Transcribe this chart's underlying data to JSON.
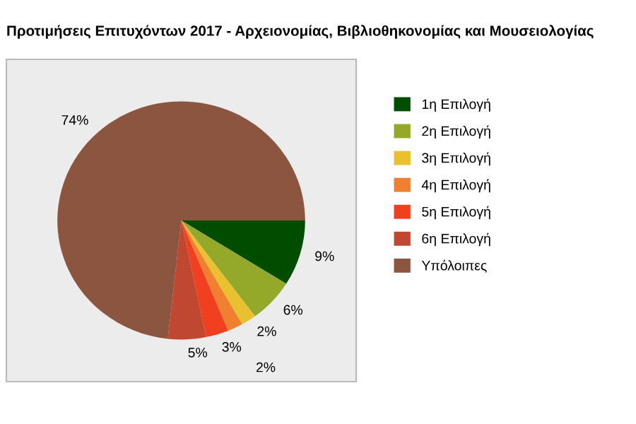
{
  "chart_data": {
    "type": "pie",
    "title": "Προτιμήσεις Επιτυχόντων 2017 - Αρχειονομίας, Βιβλιοθηκονομίας και Μουσειολογίας",
    "categories": [
      "1η Επιλογή",
      "2η Επιλογή",
      "3η Επιλογή",
      "4η Επιλογή",
      "5η Επιλογή",
      "6η Επιλογή",
      "Υπόλοιπες"
    ],
    "values": [
      9,
      6,
      2,
      2,
      3,
      5,
      74
    ],
    "colors": [
      "#004d00",
      "#94a82a",
      "#e8c030",
      "#f08030",
      "#f04020",
      "#c04830",
      "#8b5540"
    ],
    "value_labels": [
      "9%",
      "6%",
      "2%",
      "2%",
      "3%",
      "5%",
      "74%"
    ],
    "legend": "right"
  }
}
